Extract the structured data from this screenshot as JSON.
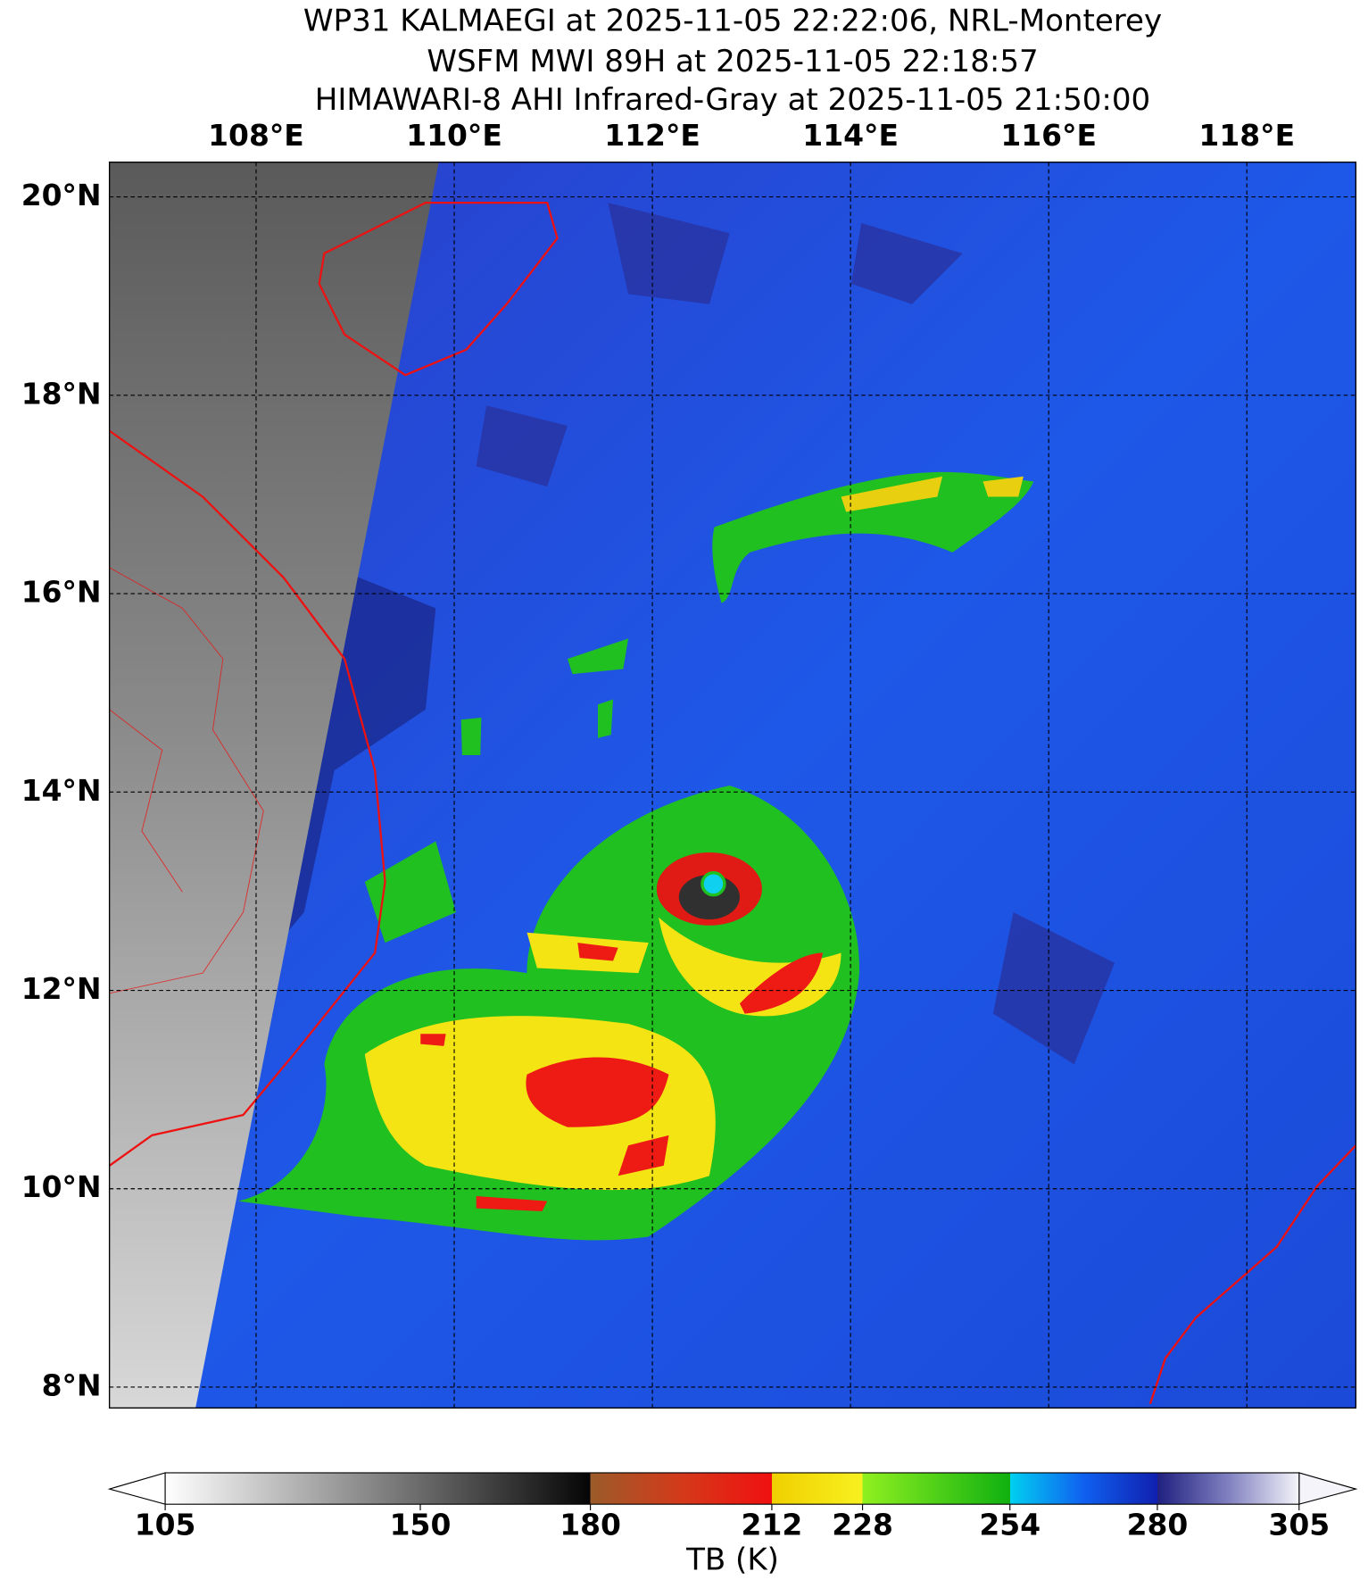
{
  "title_lines": [
    "WP31 KALMAEGI at 2025-11-05 22:22:06, NRL-Monterey",
    "WSFM MWI 89H at 2025-11-05 22:18:57",
    "HIMAWARI-8 AHI Infrared-Gray at 2025-11-05 21:50:00"
  ],
  "map": {
    "xlim": [
      106.52,
      119.1
    ],
    "ylim": [
      7.79,
      20.35
    ],
    "xticks": [
      {
        "value": 108,
        "label": "108°E"
      },
      {
        "value": 110,
        "label": "110°E"
      },
      {
        "value": 112,
        "label": "112°E"
      },
      {
        "value": 114,
        "label": "114°E"
      },
      {
        "value": 116,
        "label": "116°E"
      },
      {
        "value": 118,
        "label": "118°E"
      }
    ],
    "yticks": [
      {
        "value": 8,
        "label": "8°N"
      },
      {
        "value": 10,
        "label": "10°N"
      },
      {
        "value": 12,
        "label": "12°N"
      },
      {
        "value": 14,
        "label": "14°N"
      },
      {
        "value": 16,
        "label": "16°N"
      },
      {
        "value": 18,
        "label": "18°N"
      },
      {
        "value": 20,
        "label": "20°N"
      }
    ],
    "grid": true
  },
  "colorbar": {
    "label": "TB (K)",
    "lim": [
      105,
      305
    ],
    "ticks": [
      105,
      150,
      180,
      212,
      228,
      254,
      280,
      305
    ],
    "segment_colors": [
      [
        "#ffffff",
        "#6a6a6a"
      ],
      [
        "#6a6a6a",
        "#050505"
      ],
      [
        "#9b5b2a",
        "#d43a1a",
        "#f01010"
      ],
      [
        "#f0d000",
        "#f8f020"
      ],
      [
        "#90f020",
        "#10b010"
      ],
      [
        "#00d0f0",
        "#1060f0",
        "#1020b0"
      ],
      [
        "#202080",
        "#8080c0",
        "#f4f4fa"
      ]
    ]
  }
}
